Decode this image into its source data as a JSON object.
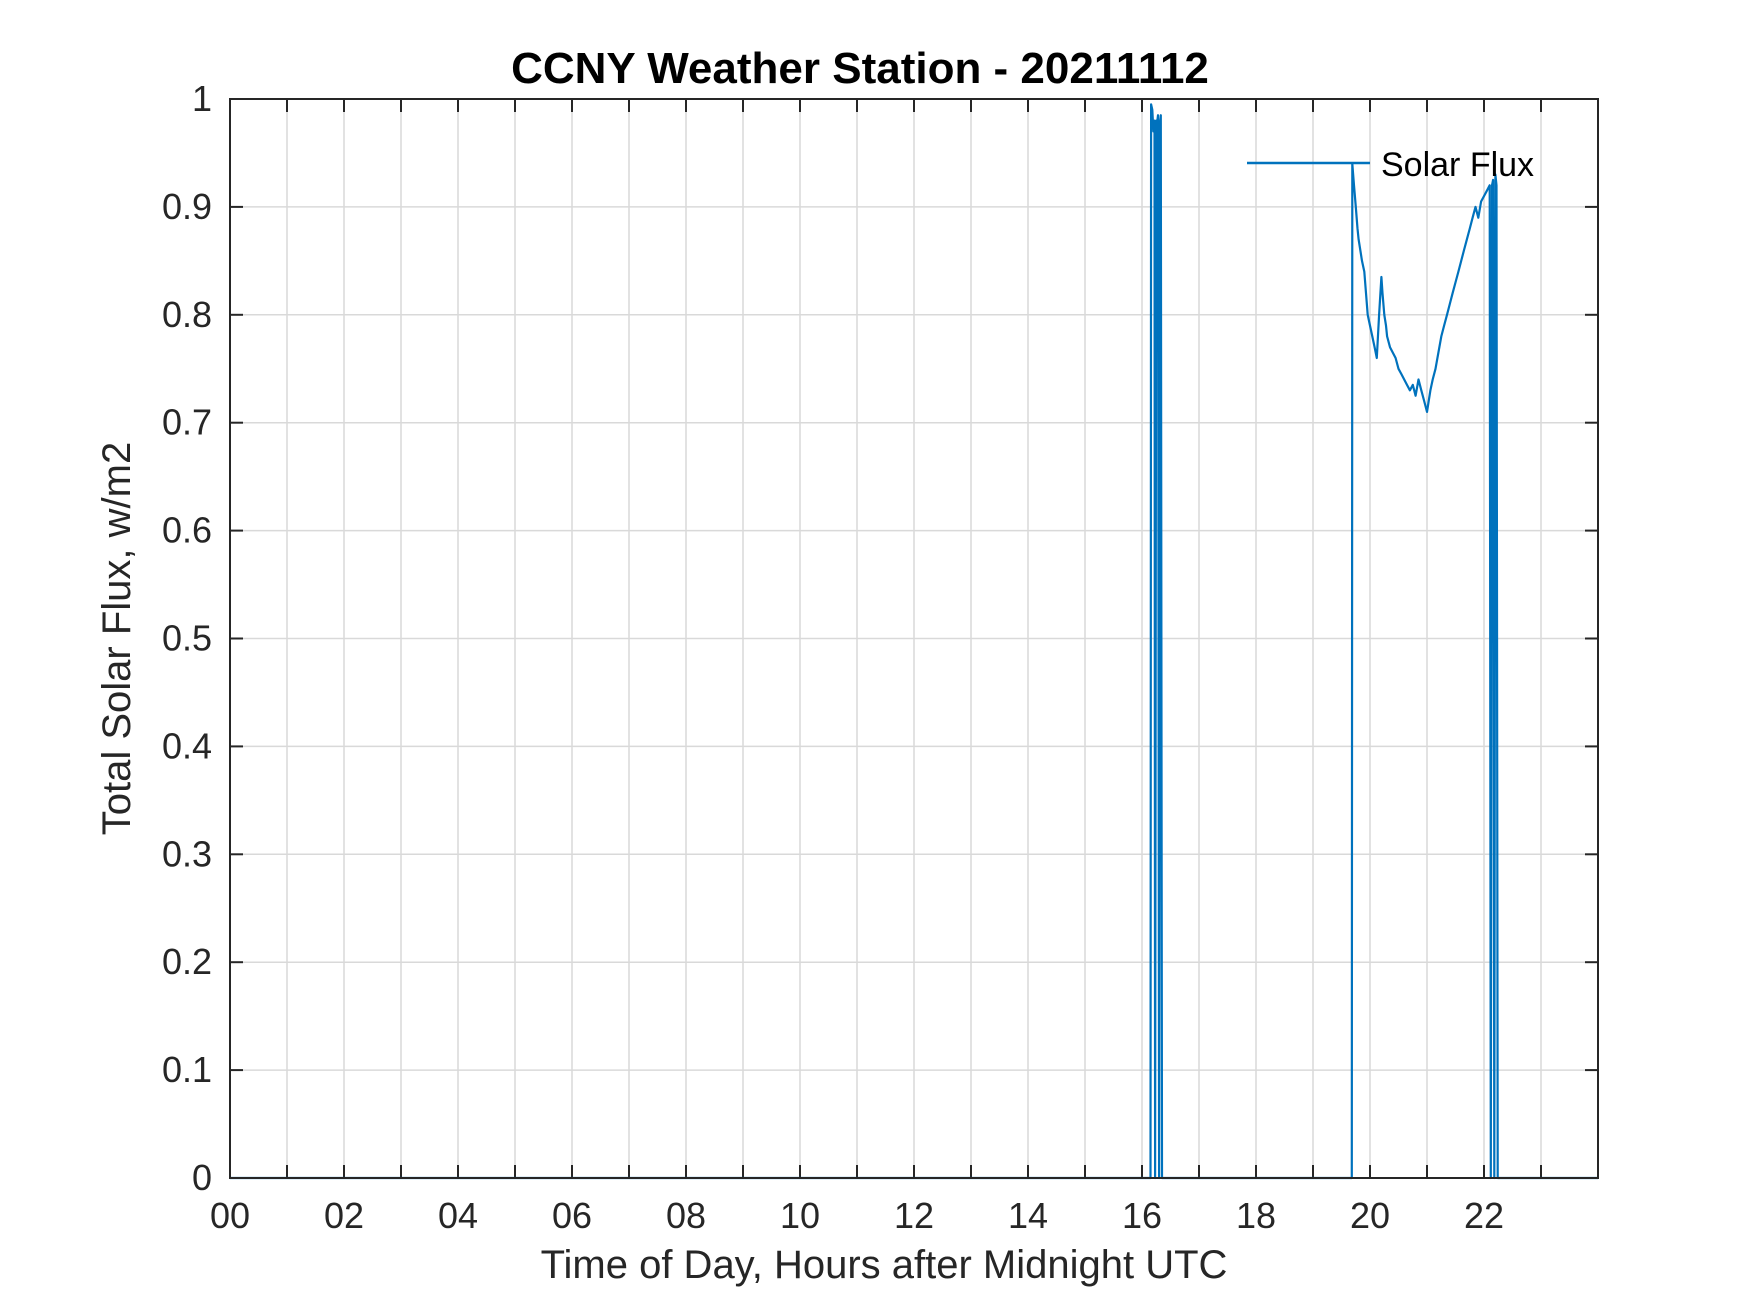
{
  "chart_data": {
    "type": "line",
    "title": "CCNY Weather Station - 20211112",
    "xlabel": "Time of Day, Hours after Midnight UTC",
    "ylabel": "Total Solar Flux, w/m2",
    "xlim": [
      0,
      24
    ],
    "ylim": [
      0,
      1
    ],
    "xticks": [
      0,
      2,
      4,
      6,
      8,
      10,
      12,
      14,
      16,
      18,
      20,
      22
    ],
    "xtick_labels": [
      "00",
      "02",
      "04",
      "06",
      "08",
      "10",
      "12",
      "14",
      "16",
      "18",
      "20",
      "22"
    ],
    "yticks": [
      0,
      0.1,
      0.2,
      0.3,
      0.4,
      0.5,
      0.6,
      0.7,
      0.8,
      0.9,
      1
    ],
    "ytick_labels": [
      "0",
      "0.1",
      "0.2",
      "0.3",
      "0.4",
      "0.5",
      "0.6",
      "0.7",
      "0.8",
      "0.9",
      "1"
    ],
    "grid": true,
    "legend_position": "top-right",
    "color": "#0072BD",
    "series": [
      {
        "name": "Solar Flux",
        "x": [
          0,
          16.15,
          16.16,
          16.18,
          16.2,
          16.22,
          16.23,
          16.25,
          16.26,
          16.28,
          16.3,
          16.32,
          16.33,
          16.35,
          19.68,
          19.69,
          19.72,
          19.75,
          19.78,
          19.8,
          19.83,
          19.86,
          19.9,
          19.93,
          19.96,
          20.0,
          20.04,
          20.08,
          20.12,
          20.16,
          20.2,
          20.22,
          20.25,
          20.28,
          20.3,
          20.35,
          20.4,
          20.45,
          20.5,
          20.55,
          20.6,
          20.65,
          20.7,
          20.75,
          20.8,
          20.85,
          20.9,
          20.95,
          21.0,
          21.03,
          21.06,
          21.1,
          21.15,
          21.2,
          21.25,
          21.3,
          21.35,
          21.4,
          21.45,
          21.5,
          21.55,
          21.6,
          21.65,
          21.7,
          21.75,
          21.8,
          21.85,
          21.9,
          21.95,
          22.0,
          22.05,
          22.1,
          22.12,
          22.14,
          22.16,
          22.18,
          22.2,
          22.22,
          22.24,
          24
        ],
        "y": [
          0,
          0,
          0.995,
          0.99,
          0.97,
          0.98,
          0,
          0.98,
          0.975,
          0.985,
          0,
          0.98,
          0.985,
          0,
          0,
          0.94,
          0.92,
          0.9,
          0.88,
          0.87,
          0.86,
          0.85,
          0.84,
          0.82,
          0.8,
          0.79,
          0.78,
          0.77,
          0.76,
          0.8,
          0.835,
          0.82,
          0.8,
          0.79,
          0.78,
          0.77,
          0.765,
          0.76,
          0.75,
          0.745,
          0.74,
          0.735,
          0.73,
          0.735,
          0.725,
          0.74,
          0.73,
          0.72,
          0.71,
          0.72,
          0.73,
          0.74,
          0.75,
          0.765,
          0.78,
          0.79,
          0.8,
          0.81,
          0.82,
          0.83,
          0.84,
          0.85,
          0.86,
          0.87,
          0.88,
          0.89,
          0.9,
          0.89,
          0.905,
          0.91,
          0.915,
          0.92,
          0,
          0.92,
          0.925,
          0,
          0.93,
          0.92,
          0,
          0
        ]
      }
    ]
  }
}
